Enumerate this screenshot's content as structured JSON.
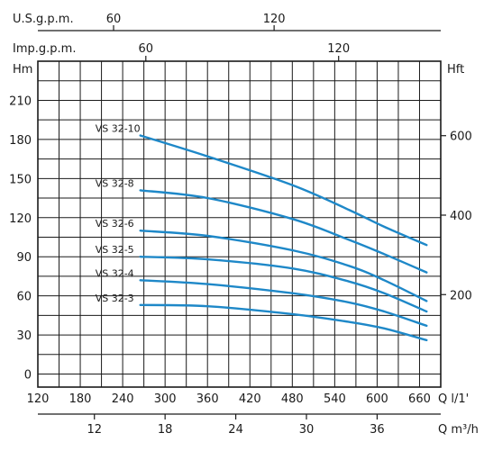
{
  "chart_data": {
    "type": "line",
    "axis_labels": {
      "y_left": "Hm",
      "y_right": "Hft",
      "x_bottom": "Q l/1'",
      "x_m3h": "Q m³/h",
      "x_usgpm": "U.S.g.p.m.",
      "x_impgpm": "Imp.g.p.m."
    },
    "x_range_lpm": [
      120,
      690
    ],
    "y_range_m": [
      -10,
      240
    ],
    "grid": true,
    "y_left_ticks": [
      0,
      30,
      60,
      90,
      120,
      150,
      180,
      210
    ],
    "y_right_ticks_ft": [
      200,
      400,
      600
    ],
    "x_bottom_ticks": [
      120,
      180,
      240,
      300,
      360,
      420,
      480,
      540,
      600,
      660
    ],
    "x_m3h_ticks": [
      12,
      18,
      24,
      30,
      36
    ],
    "x_usgpm_ticks": [
      60,
      120
    ],
    "x_impgpm_ticks": [
      60,
      120
    ],
    "curve_color": "#1e88c8",
    "series": [
      {
        "name": "VS 32-10",
        "x": [
          265,
          360,
          480,
          560,
          610,
          670
        ],
        "y": [
          183,
          167,
          145,
          126,
          113,
          99
        ]
      },
      {
        "name": "VS 32-8",
        "x": [
          265,
          360,
          480,
          560,
          610,
          670
        ],
        "y": [
          141,
          135,
          119,
          103,
          92,
          78
        ]
      },
      {
        "name": "VS 32-6",
        "x": [
          265,
          360,
          480,
          560,
          610,
          670
        ],
        "y": [
          110,
          106,
          95,
          83,
          72,
          56
        ]
      },
      {
        "name": "VS 32-5",
        "x": [
          265,
          360,
          480,
          560,
          610,
          670
        ],
        "y": [
          90,
          88,
          81,
          71,
          62,
          48
        ]
      },
      {
        "name": "VS 32-4",
        "x": [
          265,
          360,
          480,
          560,
          610,
          670
        ],
        "y": [
          72,
          69,
          62,
          55,
          48,
          37
        ]
      },
      {
        "name": "VS 32-3",
        "x": [
          265,
          360,
          480,
          560,
          610,
          670
        ],
        "y": [
          53,
          52,
          46,
          40,
          35,
          26
        ]
      }
    ]
  }
}
